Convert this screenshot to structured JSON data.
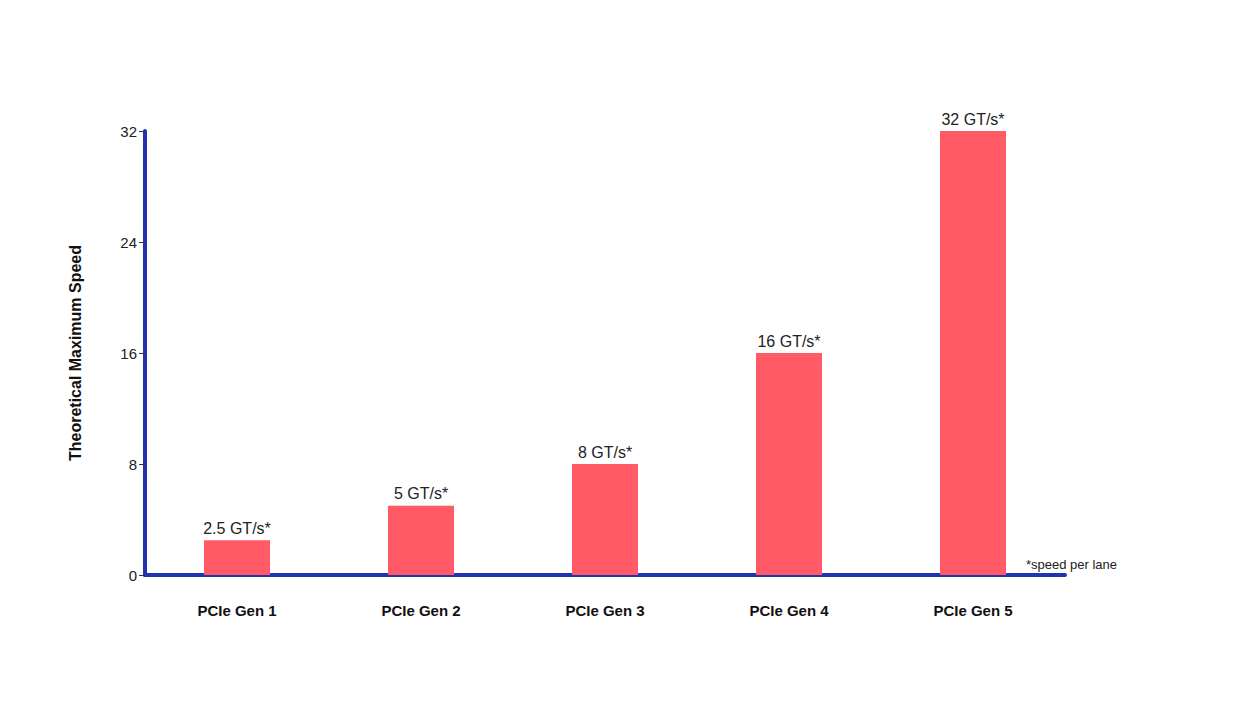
{
  "chart_data": {
    "type": "bar",
    "y_label": "Theoretical Maximum Speed",
    "categories": [
      "PCIe Gen 1",
      "PCIe Gen 2",
      "PCIe Gen 3",
      "PCIe Gen 4",
      "PCIe Gen 5"
    ],
    "values": [
      2.5,
      5,
      8,
      16,
      32
    ],
    "value_labels": [
      "2.5 GT/s*",
      "5 GT/s*",
      "8 GT/s*",
      "16 GT/s*",
      "32 GT/s*"
    ],
    "color": "#ff5a65",
    "ylim": [
      0,
      32
    ],
    "yticks": [
      0,
      8,
      16,
      24,
      32
    ],
    "grid": false,
    "data_labels": true,
    "annotation": "*speed per lane"
  }
}
